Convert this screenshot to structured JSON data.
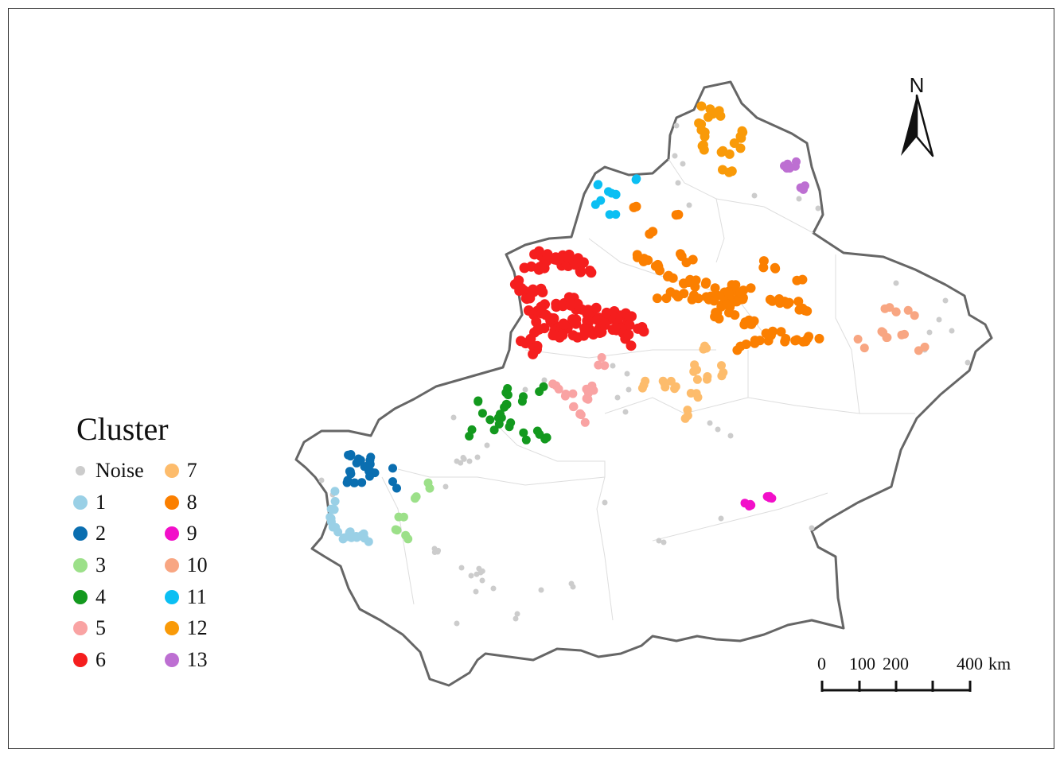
{
  "legend": {
    "title": "Cluster",
    "items": [
      {
        "label": "Noise",
        "color": "#cccccc"
      },
      {
        "label": "1",
        "color": "#9ad0e6"
      },
      {
        "label": "2",
        "color": "#0a6eb0"
      },
      {
        "label": "3",
        "color": "#9ce089"
      },
      {
        "label": "4",
        "color": "#13991e"
      },
      {
        "label": "5",
        "color": "#f9a3a3"
      },
      {
        "label": "6",
        "color": "#f51e1e"
      },
      {
        "label": "7",
        "color": "#fdbc6c"
      },
      {
        "label": "8",
        "color": "#fb7f00"
      },
      {
        "label": "9",
        "color": "#f20fc9"
      },
      {
        "label": "10",
        "color": "#f8a682"
      },
      {
        "label": "11",
        "color": "#0bbff3"
      },
      {
        "label": "12",
        "color": "#f99a08"
      },
      {
        "label": "13",
        "color": "#bd6fd2"
      }
    ]
  },
  "north_arrow": {
    "label": "N"
  },
  "scale_bar": {
    "labels": [
      "0",
      "100",
      "200",
      "400"
    ],
    "unit": "km"
  },
  "colors": {
    "boundary": "#666666",
    "internal_borders": "#dddddd",
    "land": "#ffffff"
  }
}
